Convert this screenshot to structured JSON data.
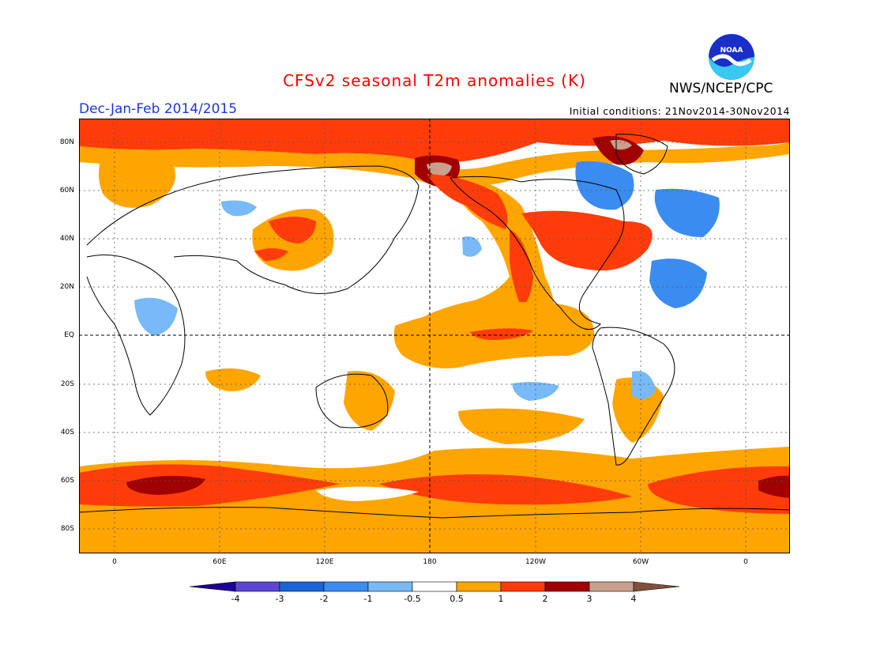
{
  "header": {
    "title": "CFSv2 seasonal T2m anomalies (K)",
    "season": "Dec-Jan-Feb 2014/2015",
    "initial_conditions": "Initial conditions: 21Nov2014-30Nov2014",
    "agency": "NWS/NCEP/CPC",
    "logo_text": "NOAA"
  },
  "map": {
    "projection": "equirectangular",
    "central_longitude": 180,
    "grid": "dotted",
    "lat_labels": [
      "80N",
      "60N",
      "40N",
      "20N",
      "EQ",
      "20S",
      "40S",
      "60S",
      "80S"
    ],
    "lon_labels": [
      "0",
      "60E",
      "120E",
      "180",
      "120W",
      "60W",
      "0"
    ]
  },
  "colorbar": {
    "labels": [
      "-4",
      "-3",
      "-2",
      "-1",
      "-0.5",
      "0.5",
      "1",
      "2",
      "3",
      "4"
    ],
    "colors": {
      "lt_m4": "#1e0096",
      "m4_m3": "#5a46d2",
      "m3_m2": "#1a64d4",
      "m2_m1": "#3b8cf0",
      "m1_m05": "#78b9f8",
      "m05_05": "#ffffff",
      "05_1": "#ffa500",
      "1_2": "#ff3c0a",
      "2_3": "#a00000",
      "3_4": "#c8a08c",
      "gt_4": "#80503c"
    }
  }
}
